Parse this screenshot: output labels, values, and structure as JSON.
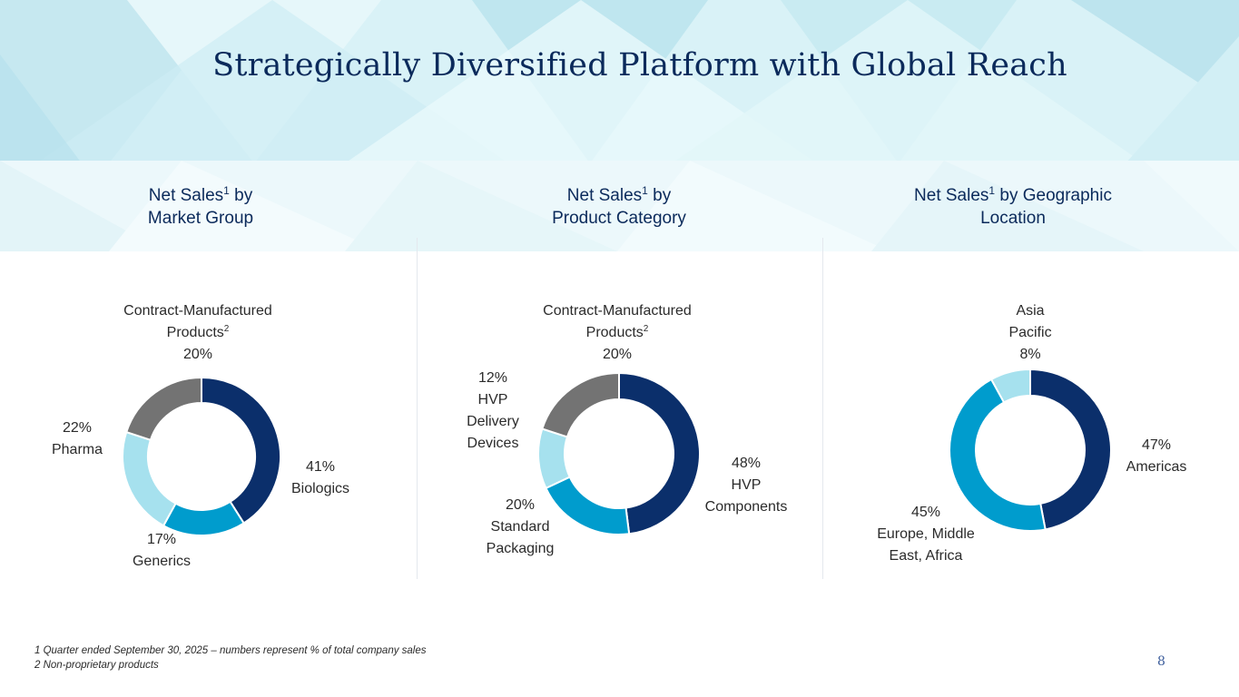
{
  "title": "Strategically Diversified Platform with Global Reach",
  "colors": {
    "navy": "#0b2f6b",
    "blue": "#009ccd",
    "light_blue": "#a6e1ee",
    "gray": "#737373",
    "heading": "#0b2a5b"
  },
  "chart_data": [
    {
      "type": "pie",
      "variant": "donut",
      "title_parts": {
        "pre": "Net Sales",
        "sup": "1",
        "post": " by",
        "line2": "Market Group"
      },
      "categories": [
        "Biologics",
        "Generics",
        "Pharma",
        "Contract-Manufactured Products"
      ],
      "values": [
        41,
        17,
        22,
        20
      ],
      "colors": [
        "#0b2f6b",
        "#009ccd",
        "#a6e1ee",
        "#737373"
      ],
      "labels": [
        {
          "pct": "41%",
          "lines": [
            "Biologics"
          ]
        },
        {
          "pct": "17%",
          "lines": [
            "Generics"
          ]
        },
        {
          "pct": "22%",
          "lines": [
            "Pharma"
          ]
        },
        {
          "pct": "20%",
          "lines": [
            "Contract-Manufactured",
            "Products"
          ],
          "sup": "2",
          "pct_last": true
        }
      ]
    },
    {
      "type": "pie",
      "variant": "donut",
      "title_parts": {
        "pre": "Net Sales",
        "sup": "1",
        "post": " by",
        "line2": "Product Category"
      },
      "categories": [
        "HVP Components",
        "Standard Packaging",
        "HVP Delivery Devices",
        "Contract-Manufactured Products"
      ],
      "values": [
        48,
        20,
        12,
        20
      ],
      "colors": [
        "#0b2f6b",
        "#009ccd",
        "#a6e1ee",
        "#737373"
      ],
      "labels": [
        {
          "pct": "48%",
          "lines": [
            "HVP",
            "Components"
          ]
        },
        {
          "pct": "20%",
          "lines": [
            "Standard",
            "Packaging"
          ]
        },
        {
          "pct": "12%",
          "lines": [
            "HVP",
            "Delivery",
            "Devices"
          ]
        },
        {
          "pct": "20%",
          "lines": [
            "Contract-Manufactured",
            "Products"
          ],
          "sup": "2",
          "pct_last": true
        }
      ]
    },
    {
      "type": "pie",
      "variant": "donut",
      "title_parts": {
        "pre": "Net Sales",
        "sup": "1",
        "post": " by Geographic",
        "line2": "Location"
      },
      "categories": [
        "Americas",
        "Europe, Middle East, Africa",
        "Asia Pacific"
      ],
      "values": [
        47,
        45,
        8
      ],
      "colors": [
        "#0b2f6b",
        "#009ccd",
        "#a6e1ee"
      ],
      "labels": [
        {
          "pct": "47%",
          "lines": [
            "Americas"
          ]
        },
        {
          "pct": "45%",
          "lines": [
            "Europe, Middle",
            "East, Africa"
          ]
        },
        {
          "pct": "8%",
          "lines": [
            "Asia",
            "Pacific"
          ],
          "pct_last": true
        }
      ]
    }
  ],
  "footnotes": [
    "1  Quarter ended September 30, 2025 – numbers represent % of total company sales",
    "2  Non-proprietary products"
  ],
  "page_number": "8"
}
